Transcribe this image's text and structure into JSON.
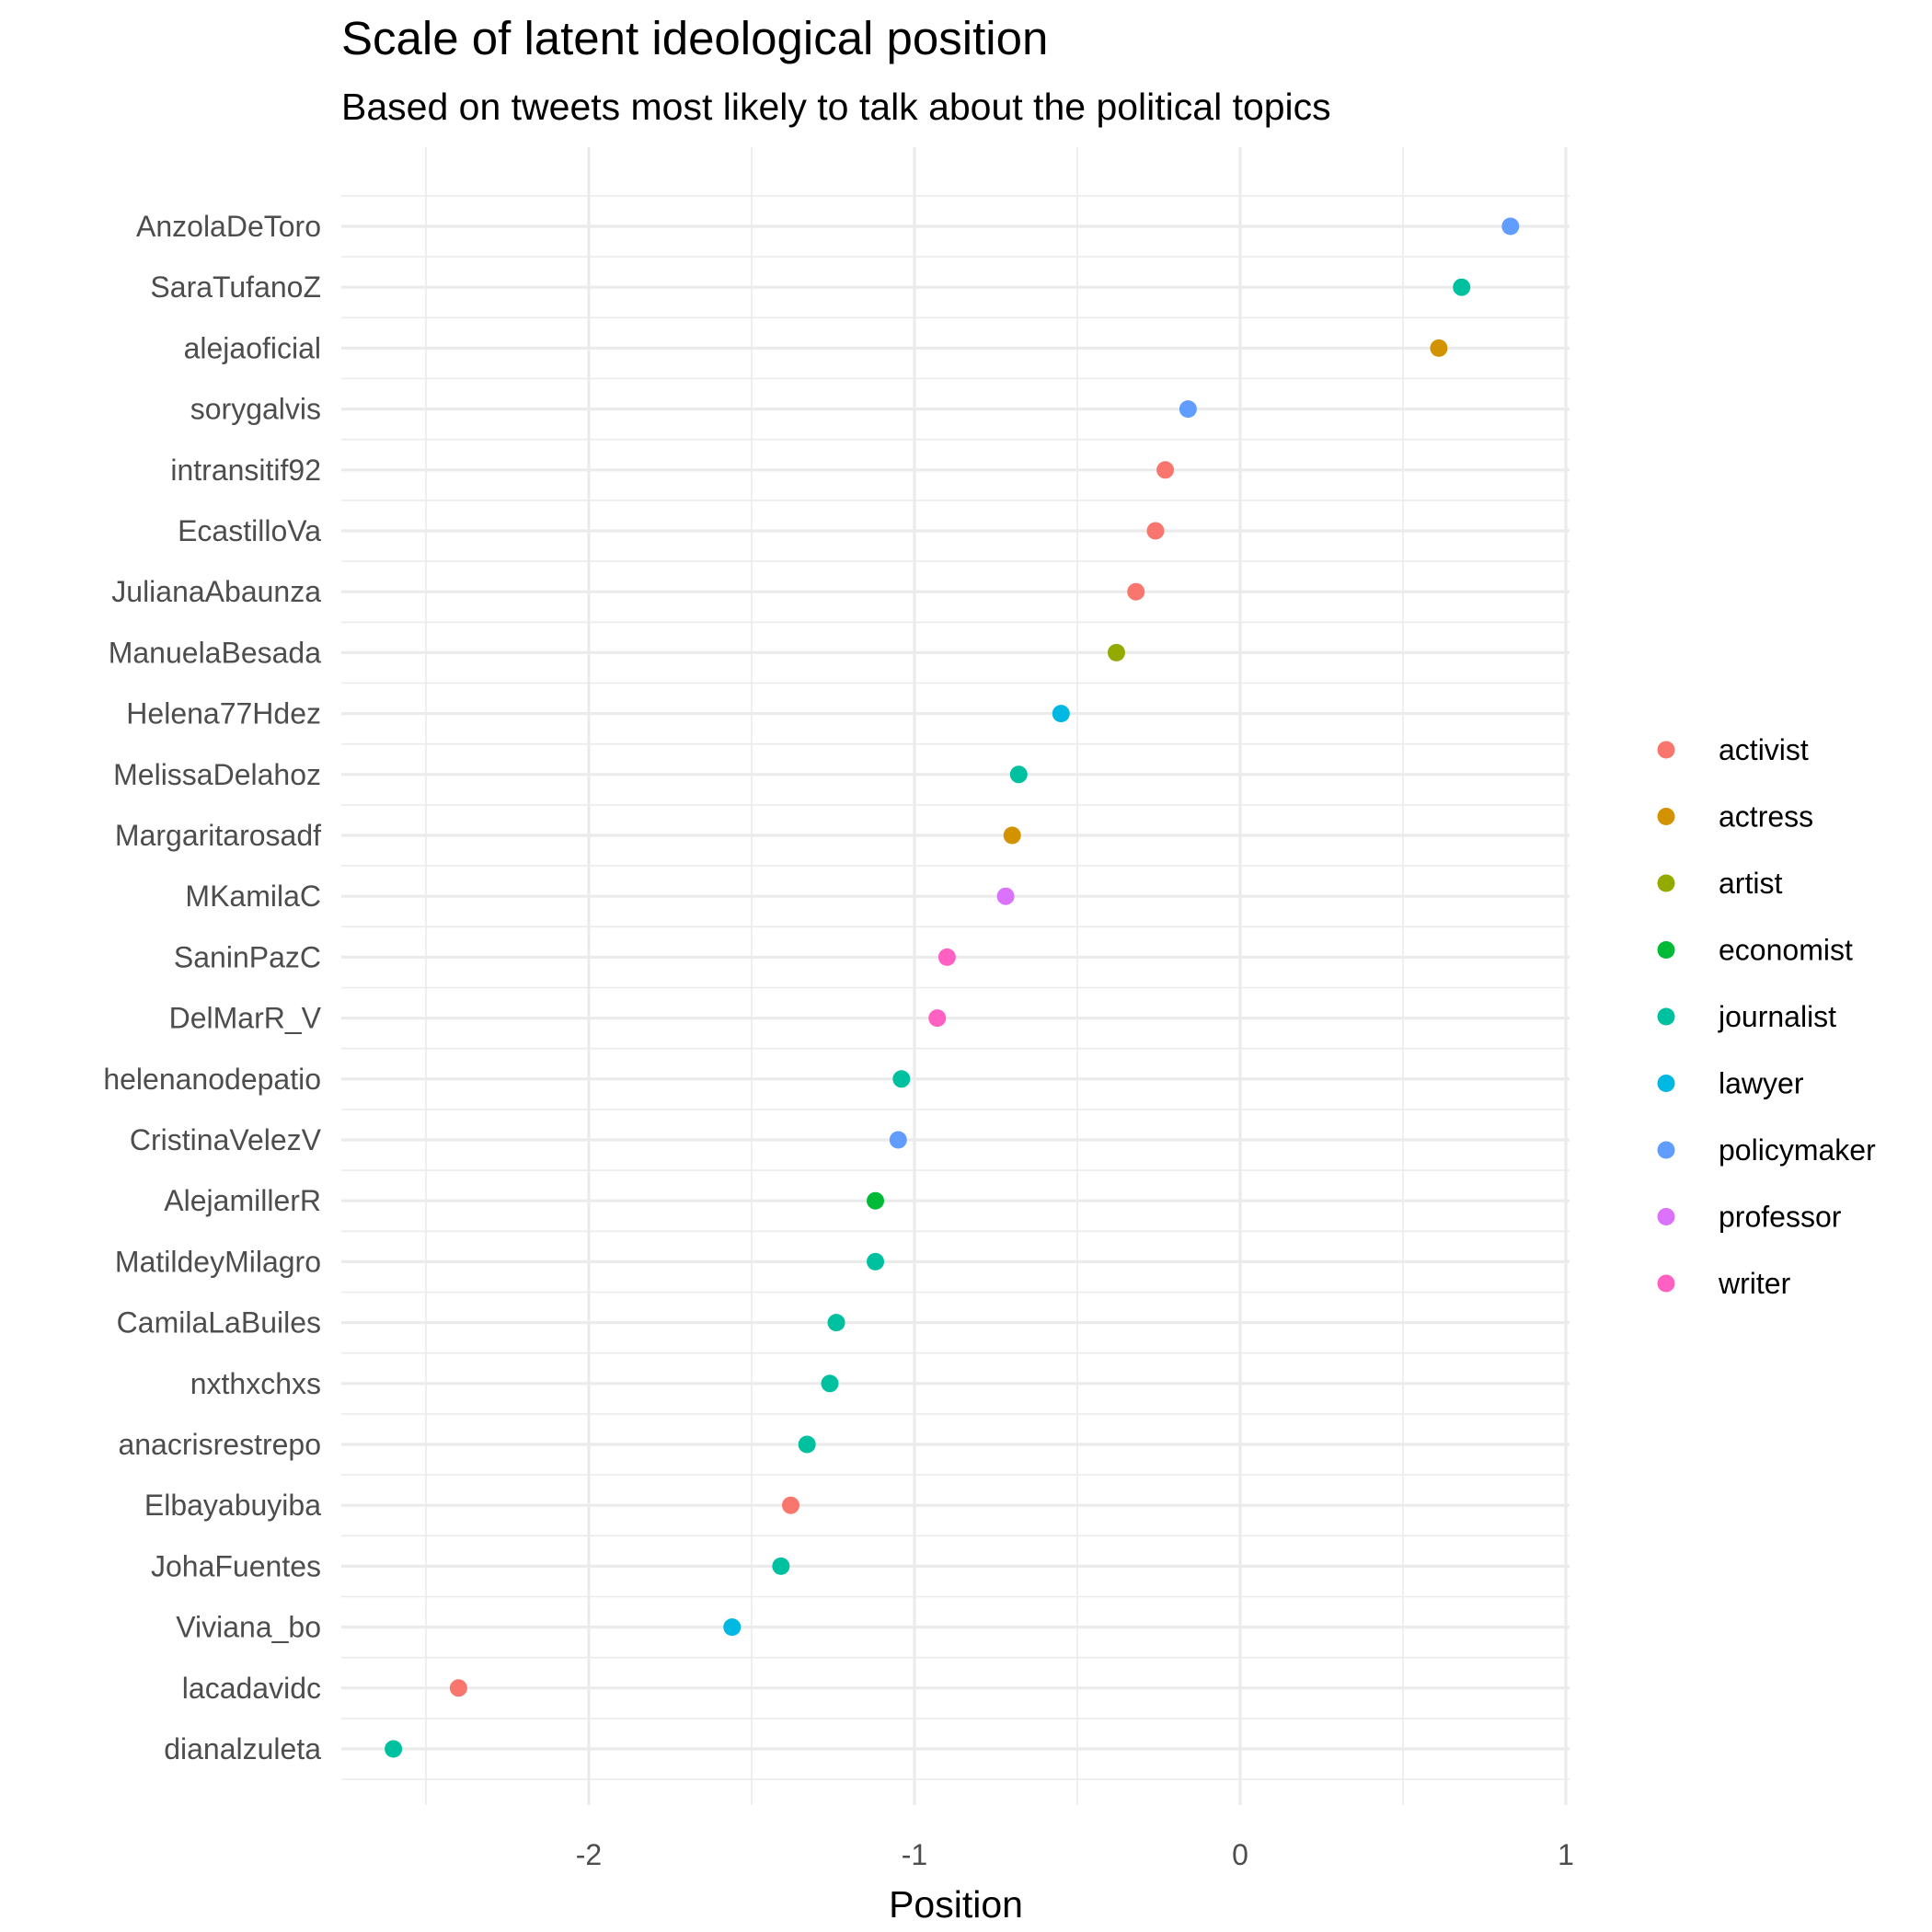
{
  "chart_data": {
    "type": "scatter",
    "title": "Scale of latent ideological position",
    "subtitle": "Based on tweets most likely to talk about the political topics",
    "xlabel": "Position",
    "ylabel": "",
    "xlim": [
      -2.77,
      1.0
    ],
    "x_ticks": [
      -2,
      -1,
      0,
      1
    ],
    "x_tick_labels": [
      "-2",
      "-1",
      "0",
      "1"
    ],
    "grid": true,
    "legend_position": "right",
    "legend": [
      {
        "name": "activist",
        "color": "#F8766D"
      },
      {
        "name": "actress",
        "color": "#D39200"
      },
      {
        "name": "artist",
        "color": "#93AA00"
      },
      {
        "name": "economist",
        "color": "#00BA38"
      },
      {
        "name": "journalist",
        "color": "#00C19F"
      },
      {
        "name": "lawyer",
        "color": "#00B9E3"
      },
      {
        "name": "policymaker",
        "color": "#619CFF"
      },
      {
        "name": "professor",
        "color": "#DB72FB"
      },
      {
        "name": "writer",
        "color": "#FF61C3"
      }
    ],
    "points": [
      {
        "name": "AnzolaDeToro",
        "x": 0.83,
        "group": "policymaker"
      },
      {
        "name": "SaraTufanoZ",
        "x": 0.68,
        "group": "journalist"
      },
      {
        "name": "alejaoficial",
        "x": 0.61,
        "group": "actress"
      },
      {
        "name": "sorygalvis",
        "x": -0.16,
        "group": "policymaker"
      },
      {
        "name": "intransitif92",
        "x": -0.23,
        "group": "activist"
      },
      {
        "name": "EcastilloVa",
        "x": -0.26,
        "group": "activist"
      },
      {
        "name": "JulianaAbaunza",
        "x": -0.32,
        "group": "activist"
      },
      {
        "name": "ManuelaBesada",
        "x": -0.38,
        "group": "artist"
      },
      {
        "name": "Helena77Hdez",
        "x": -0.55,
        "group": "lawyer"
      },
      {
        "name": "MelissaDelahoz",
        "x": -0.68,
        "group": "journalist"
      },
      {
        "name": "Margaritarosadf",
        "x": -0.7,
        "group": "actress"
      },
      {
        "name": "MKamilaC",
        "x": -0.72,
        "group": "professor"
      },
      {
        "name": "SaninPazC",
        "x": -0.9,
        "group": "writer"
      },
      {
        "name": "DelMarR_V",
        "x": -0.93,
        "group": "writer"
      },
      {
        "name": "helenanodepatio",
        "x": -1.04,
        "group": "journalist"
      },
      {
        "name": "CristinaVelezV",
        "x": -1.05,
        "group": "policymaker"
      },
      {
        "name": "AlejamillerR",
        "x": -1.12,
        "group": "economist"
      },
      {
        "name": "MatildeyMilagro",
        "x": -1.12,
        "group": "journalist"
      },
      {
        "name": "CamilaLaBuiles",
        "x": -1.24,
        "group": "journalist"
      },
      {
        "name": "nxthxchxs",
        "x": -1.26,
        "group": "journalist"
      },
      {
        "name": "anacrisrestrepo",
        "x": -1.33,
        "group": "journalist"
      },
      {
        "name": "Elbayabuyiba",
        "x": -1.38,
        "group": "activist"
      },
      {
        "name": "JohaFuentes",
        "x": -1.41,
        "group": "journalist"
      },
      {
        "name": "Viviana_bo",
        "x": -1.56,
        "group": "lawyer"
      },
      {
        "name": "lacadavidc",
        "x": -2.4,
        "group": "activist"
      },
      {
        "name": "dianalzuleta",
        "x": -2.6,
        "group": "journalist"
      }
    ]
  }
}
